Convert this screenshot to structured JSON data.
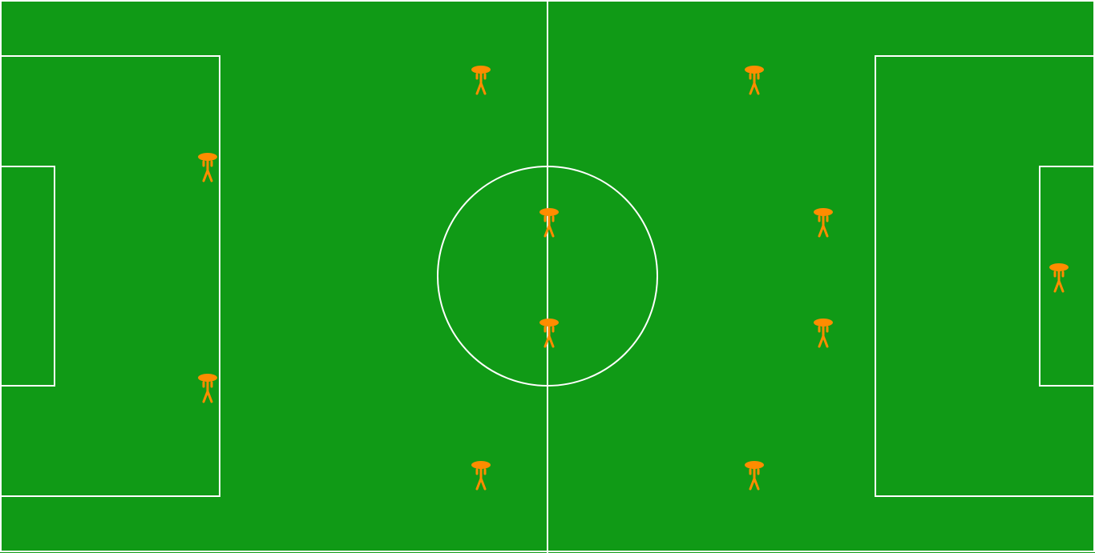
{
  "colors": {
    "pitch": "#109a16",
    "lines": "#ffffff",
    "player": "#ff8c00"
  },
  "players": [
    {
      "team": "left",
      "role": "defender"
    },
    {
      "team": "left",
      "role": "defender"
    },
    {
      "team": "left",
      "role": "midfielder"
    },
    {
      "team": "left",
      "role": "midfielder"
    },
    {
      "team": "left",
      "role": "forward"
    },
    {
      "team": "left",
      "role": "forward"
    },
    {
      "team": "right",
      "role": "midfielder"
    },
    {
      "team": "right",
      "role": "midfielder"
    },
    {
      "team": "right",
      "role": "defender"
    },
    {
      "team": "right",
      "role": "defender"
    },
    {
      "team": "right",
      "role": "goalkeeper"
    }
  ]
}
